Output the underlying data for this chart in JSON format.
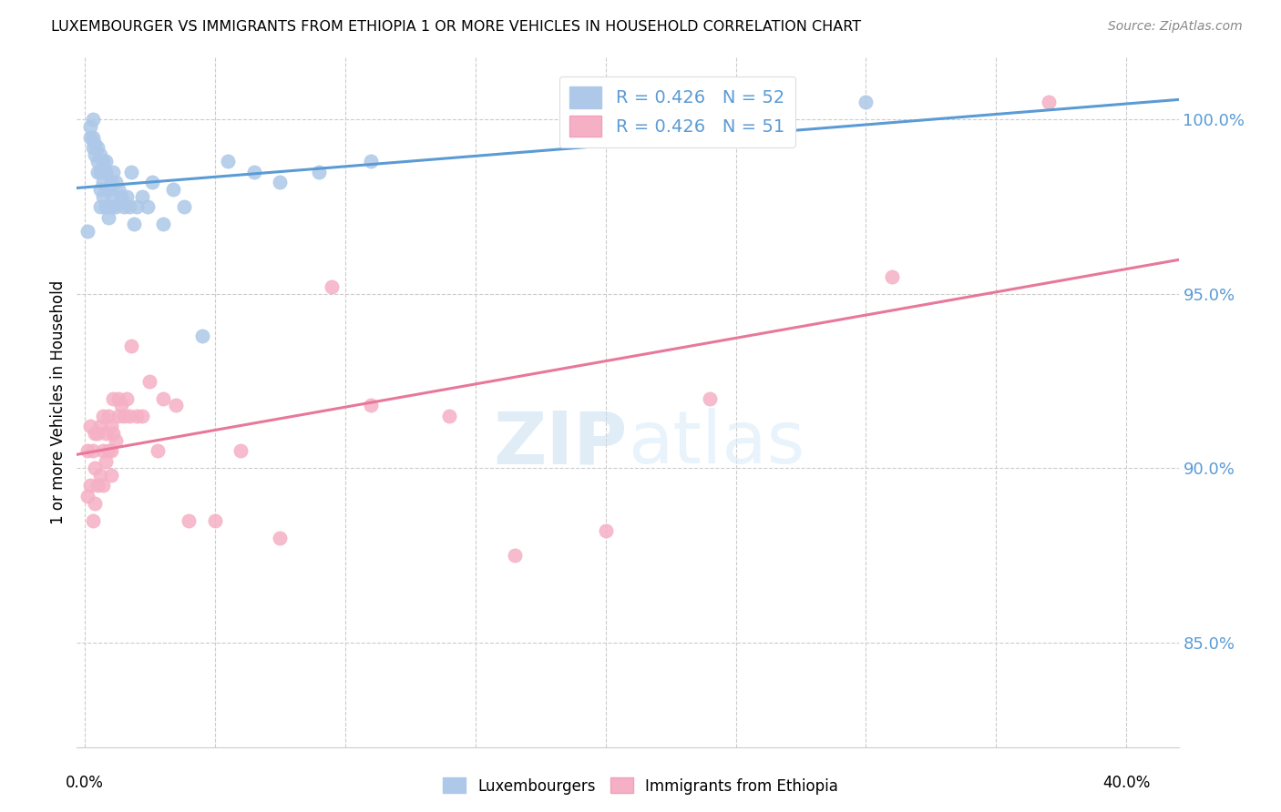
{
  "title": "LUXEMBOURGER VS IMMIGRANTS FROM ETHIOPIA 1 OR MORE VEHICLES IN HOUSEHOLD CORRELATION CHART",
  "source": "Source: ZipAtlas.com",
  "ylabel": "1 or more Vehicles in Household",
  "ylim": [
    82.0,
    101.8
  ],
  "xlim": [
    -0.003,
    0.42
  ],
  "yticks": [
    85.0,
    90.0,
    95.0,
    100.0
  ],
  "xticks": [
    0.0,
    0.05,
    0.1,
    0.15,
    0.2,
    0.25,
    0.3,
    0.35,
    0.4
  ],
  "blue_R": 0.426,
  "blue_N": 52,
  "pink_R": 0.426,
  "pink_N": 51,
  "blue_color": "#adc8e8",
  "pink_color": "#f5b0c5",
  "blue_line_color": "#5b9bd5",
  "pink_line_color": "#e8789a",
  "legend_text_color": "#5b9bd5",
  "blue_scatter_x": [
    0.001,
    0.002,
    0.002,
    0.003,
    0.003,
    0.003,
    0.004,
    0.004,
    0.005,
    0.005,
    0.005,
    0.006,
    0.006,
    0.006,
    0.006,
    0.007,
    0.007,
    0.007,
    0.008,
    0.008,
    0.008,
    0.008,
    0.009,
    0.009,
    0.01,
    0.01,
    0.011,
    0.011,
    0.012,
    0.012,
    0.013,
    0.014,
    0.015,
    0.016,
    0.017,
    0.018,
    0.019,
    0.02,
    0.022,
    0.024,
    0.026,
    0.03,
    0.034,
    0.038,
    0.045,
    0.055,
    0.065,
    0.075,
    0.09,
    0.11,
    0.27,
    0.3
  ],
  "blue_scatter_y": [
    96.8,
    99.5,
    99.8,
    99.2,
    99.5,
    100.0,
    99.0,
    99.3,
    98.5,
    98.8,
    99.2,
    97.5,
    98.0,
    98.5,
    99.0,
    97.8,
    98.2,
    98.8,
    97.5,
    98.0,
    98.5,
    98.8,
    97.2,
    98.0,
    97.5,
    98.2,
    97.8,
    98.5,
    97.5,
    98.2,
    98.0,
    97.8,
    97.5,
    97.8,
    97.5,
    98.5,
    97.0,
    97.5,
    97.8,
    97.5,
    98.2,
    97.0,
    98.0,
    97.5,
    93.8,
    98.8,
    98.5,
    98.2,
    98.5,
    98.8,
    100.2,
    100.5
  ],
  "pink_scatter_x": [
    0.001,
    0.001,
    0.002,
    0.002,
    0.003,
    0.003,
    0.004,
    0.004,
    0.004,
    0.005,
    0.005,
    0.006,
    0.006,
    0.007,
    0.007,
    0.007,
    0.008,
    0.008,
    0.009,
    0.009,
    0.01,
    0.01,
    0.01,
    0.011,
    0.011,
    0.012,
    0.013,
    0.013,
    0.014,
    0.015,
    0.016,
    0.017,
    0.018,
    0.02,
    0.022,
    0.025,
    0.028,
    0.03,
    0.035,
    0.04,
    0.05,
    0.06,
    0.075,
    0.095,
    0.11,
    0.14,
    0.165,
    0.2,
    0.24,
    0.31,
    0.37
  ],
  "pink_scatter_y": [
    89.2,
    90.5,
    89.5,
    91.2,
    88.5,
    90.5,
    89.0,
    90.0,
    91.0,
    89.5,
    91.0,
    89.8,
    91.2,
    89.5,
    90.5,
    91.5,
    90.2,
    91.0,
    90.5,
    91.5,
    89.8,
    90.5,
    91.2,
    91.0,
    92.0,
    90.8,
    91.5,
    92.0,
    91.8,
    91.5,
    92.0,
    91.5,
    93.5,
    91.5,
    91.5,
    92.5,
    90.5,
    92.0,
    91.8,
    88.5,
    88.5,
    90.5,
    88.0,
    95.2,
    91.8,
    91.5,
    87.5,
    88.2,
    92.0,
    95.5,
    100.5
  ]
}
